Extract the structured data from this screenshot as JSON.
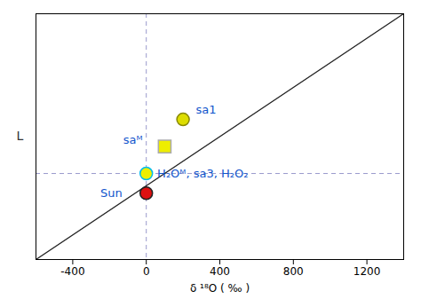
{
  "chart_data": {
    "type": "scatter",
    "xlabel": "δ ¹⁸O ( ‰ )",
    "ylabel": "L",
    "xlim": [
      -600,
      1400
    ],
    "ylim": [
      -300,
      700
    ],
    "xticks": [
      -400,
      0,
      400,
      800,
      1200
    ],
    "tick_labels": "x",
    "line": {
      "x": [
        -600,
        1400
      ],
      "y": [
        -300,
        700
      ],
      "color": "#222222"
    },
    "reference_lines": [
      {
        "axis": "x",
        "value": 0,
        "color": "#9999cc",
        "line_style": "dashed"
      },
      {
        "axis": "y",
        "value": 50,
        "color": "#9999cc",
        "line_style": "dashed"
      }
    ],
    "points": {
      "x": [
        0,
        0,
        100,
        200
      ],
      "y": [
        -30,
        50,
        160,
        270
      ],
      "colors": [
        "#dd1111",
        "#eeee00",
        "#eeee00",
        "#dddd00"
      ],
      "edge_colors": [
        "#222222",
        "#00bbee",
        "#aaaaaa",
        "#888800"
      ],
      "markers": [
        "circle",
        "circle",
        "square",
        "circle"
      ]
    },
    "annotations": [
      {
        "text": "Sun",
        "x": -130,
        "y": -30,
        "align": "right",
        "color": "#1155cc"
      },
      {
        "text": "H₂Oᴹ, sa3, H₂O₂",
        "x": 60,
        "y": 50,
        "align": "left",
        "color": "#1155cc"
      },
      {
        "text": "saᴹ",
        "x": -20,
        "y": 185,
        "align": "right",
        "color": "#1155cc"
      },
      {
        "text": "sa1",
        "x": 270,
        "y": 310,
        "align": "left",
        "color": "#1155cc"
      }
    ]
  }
}
